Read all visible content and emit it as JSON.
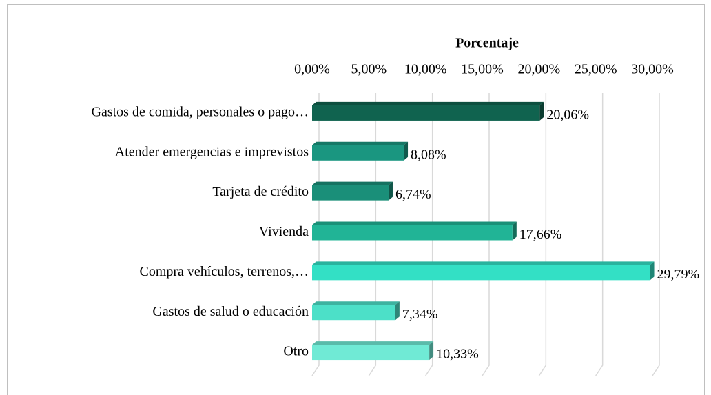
{
  "chart_data": {
    "type": "hbar",
    "title": "Porcentaje",
    "categories": [
      "Gastos de comida, personales o pago…",
      "Atender emergencias e imprevistos",
      "Tarjeta de crédito",
      "Vivienda",
      "Compra vehículos, terrenos,…",
      "Gastos de salud o educación",
      "Otro"
    ],
    "values": [
      20.06,
      8.08,
      6.74,
      17.66,
      29.79,
      7.34,
      10.33
    ],
    "value_labels": [
      "20,06%",
      "8,08%",
      "6,74%",
      "17,66%",
      "29,79%",
      "7,34%",
      "10,33%"
    ],
    "colors": [
      "#10634f",
      "#1a9680",
      "#1a8f79",
      "#21b496",
      "#33e0c5",
      "#4ce0c8",
      "#70ead5"
    ],
    "xlim": [
      0,
      30
    ],
    "xticks": [
      {
        "value": 0,
        "label": "0,00%"
      },
      {
        "value": 5,
        "label": "5,00%"
      },
      {
        "value": 10,
        "label": "10,00%"
      },
      {
        "value": 15,
        "label": "15,00%"
      },
      {
        "value": 20,
        "label": "20,00%"
      },
      {
        "value": 25,
        "label": "25,00%"
      },
      {
        "value": 30,
        "label": "30,00%"
      }
    ],
    "grid": true
  }
}
